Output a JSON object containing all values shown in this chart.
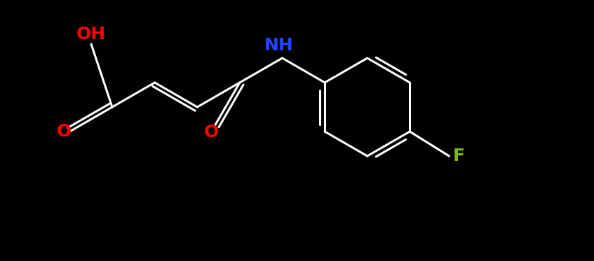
{
  "background_color": "#000000",
  "white": "#ffffff",
  "red": "#ff0000",
  "blue": "#2222ff",
  "green_f": "#7dbd00",
  "figsize": [
    8.47,
    3.73
  ],
  "dpi": 100,
  "lw": 2.2,
  "fontsize": 18,
  "OH": {
    "label": "OH",
    "color": "#ff0000"
  },
  "O1": {
    "label": "O",
    "color": "#ff0000"
  },
  "NH": {
    "label": "NH",
    "color": "#2244ff"
  },
  "O2": {
    "label": "O",
    "color": "#ff0000"
  },
  "F": {
    "label": "F",
    "color": "#7dbd00"
  }
}
